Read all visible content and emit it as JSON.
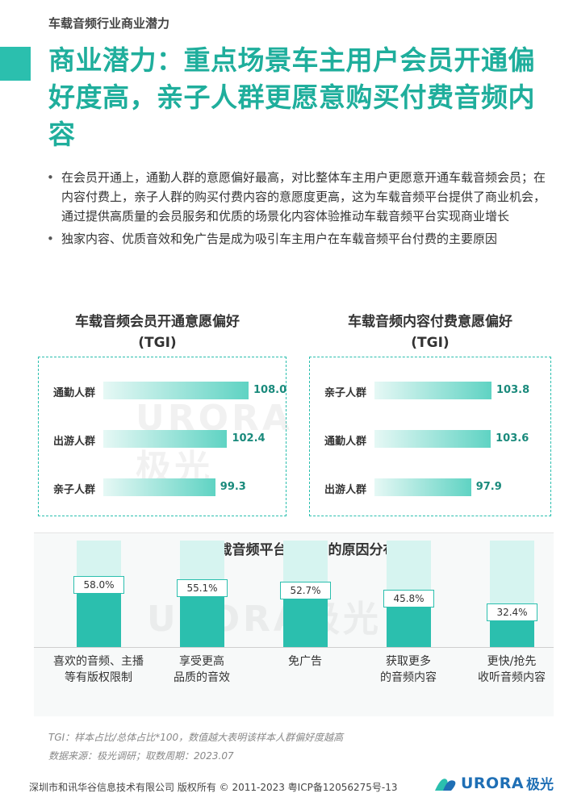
{
  "header": {
    "section_tag": "车载音频行业商业潜力",
    "title": "商业潜力：重点场景车主用户会员开通偏好度高，亲子人群更愿意购买付费音频内容"
  },
  "bullets": [
    "在会员开通上，通勤人群的意愿偏好最高，对比整体车主用户更愿意开通车载音频会员；在内容付费上，亲子人群的购买付费内容的意愿度更高，这为车载音频平台提供了商业机会，通过提供高质量的会员服务和优质的场景化内容体验推动车载音频平台实现商业增长",
    "独家内容、优质音效和免广告是成为吸引车主用户在车载音频平台付费的主要原因"
  ],
  "watermark": "URORA极光",
  "chart_data": [
    {
      "type": "bar",
      "orientation": "horizontal",
      "title": "车载音频会员开通意愿偏好",
      "subtitle": "(TGI)",
      "categories": [
        "通勤人群",
        "出游人群",
        "亲子人群"
      ],
      "values": [
        108.0,
        102.4,
        99.3
      ],
      "value_labels": [
        "108.0",
        "102.4",
        "99.3"
      ]
    },
    {
      "type": "bar",
      "orientation": "horizontal",
      "title": "车载音频内容付费意愿偏好",
      "subtitle": "(TGI)",
      "categories": [
        "亲子人群",
        "通勤人群",
        "出游人群"
      ],
      "values": [
        103.8,
        103.6,
        97.9
      ],
      "value_labels": [
        "103.8",
        "103.6",
        "97.9"
      ]
    },
    {
      "type": "bar",
      "orientation": "vertical",
      "title": "在车载音频平台上付费的原因分布",
      "categories": [
        "喜欢的音频、主播\n等有版权限制",
        "享受更高\n品质的音效",
        "免广告",
        "获取更多\n的音频内容",
        "更快/抢先\n收听音频内容"
      ],
      "values": [
        58.0,
        55.1,
        52.7,
        45.8,
        32.4
      ],
      "value_labels": [
        "58.0%",
        "55.1%",
        "52.7%",
        "45.8%",
        "32.4%"
      ],
      "ylim": [
        0,
        100
      ]
    }
  ],
  "notes": {
    "tgi": "TGI：样本占比/总体占比*100，数值越大表明该样本人群偏好度越高",
    "source": "数据来源：极光调研；取数周期：2023.07"
  },
  "footer": {
    "copyright": "深圳市和讯华谷信息技术有限公司 版权所有 © 2011-2023 粤ICP备12056275号-13",
    "logo_text": "URORA",
    "logo_cn": "极光"
  },
  "colors": {
    "accent": "#2bbfae",
    "title": "#1fae9c",
    "bar_light": "#d6f4f0",
    "logo": "#1f6fb5"
  }
}
